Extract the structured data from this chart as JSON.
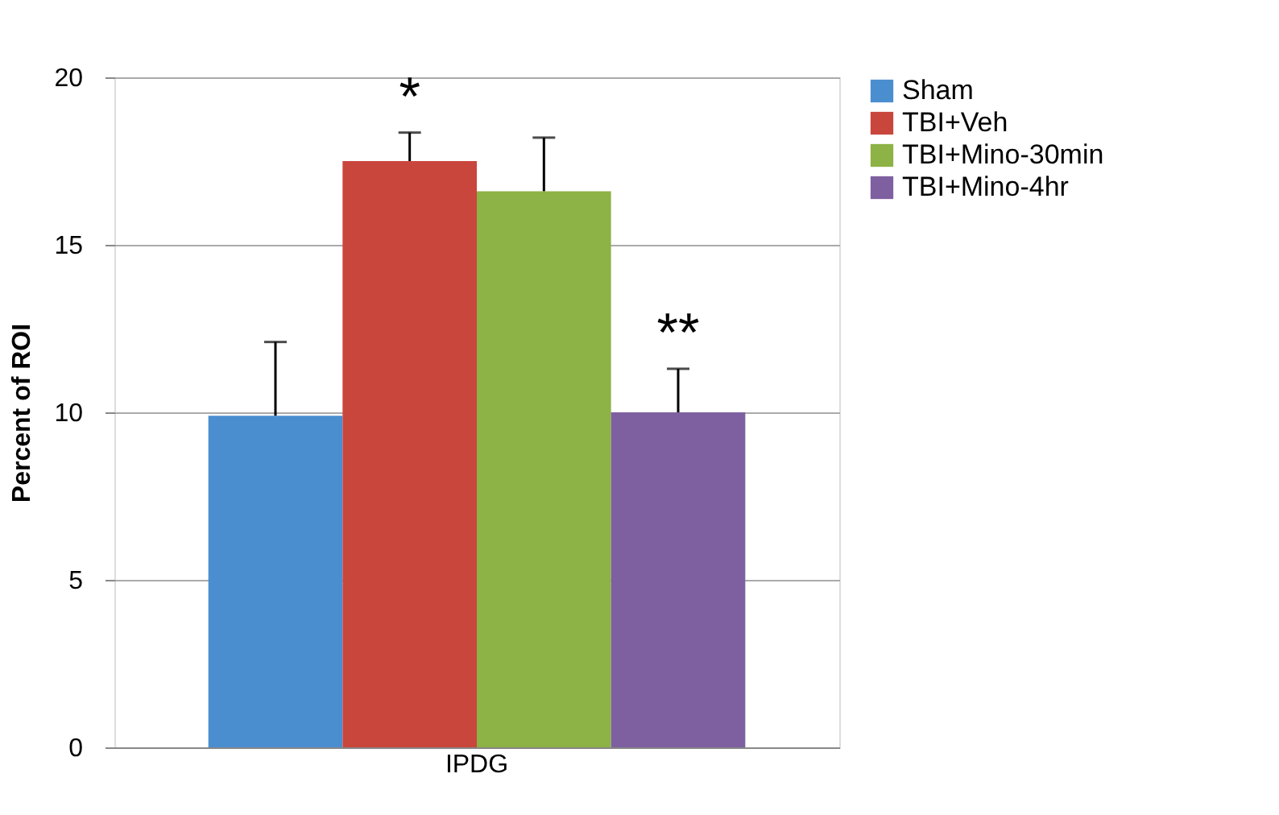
{
  "chart_data": {
    "type": "bar",
    "categories": [
      "IPDG"
    ],
    "ylabel": "Percent of ROI",
    "series": [
      {
        "name": "Sham",
        "color": "#4a8ed0",
        "values": [
          9.9
        ],
        "errors": [
          [
            9.9,
            12.1
          ]
        ]
      },
      {
        "name": "TBI+Veh",
        "color": "#c9463d",
        "values": [
          17.5
        ],
        "errors": [
          [
            17.5,
            18.35
          ]
        ]
      },
      {
        "name": "TBI+Mino-30min",
        "color": "#8db245",
        "values": [
          16.6
        ],
        "errors": [
          [
            16.6,
            18.2
          ]
        ]
      },
      {
        "name": "TBI+Mino-4hr",
        "color": "#7e60a0",
        "values": [
          10.0
        ],
        "errors": [
          [
            10.0,
            11.3
          ]
        ]
      }
    ],
    "annotations": [
      "*",
      "**"
    ],
    "ylim": [
      0,
      20
    ],
    "yticks": [
      0,
      5,
      10,
      15,
      20
    ],
    "grid": "y",
    "legend": "right"
  }
}
